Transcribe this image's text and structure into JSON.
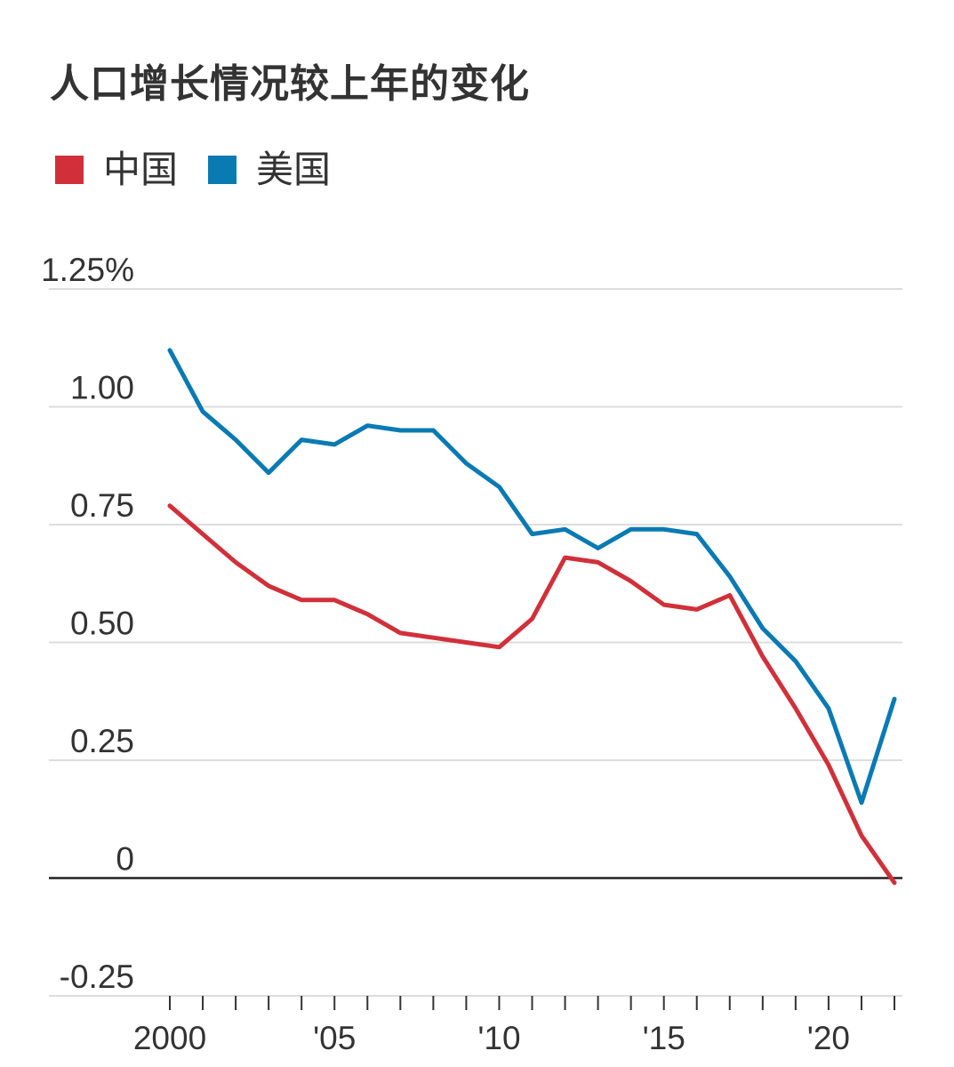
{
  "title": "人口增长情况较上年的变化",
  "legend": [
    {
      "label": "中国",
      "color": "#d1303a"
    },
    {
      "label": "美国",
      "color": "#0a7ab3"
    }
  ],
  "chart_data": {
    "type": "line",
    "title": "人口增长情况较上年的变化",
    "x": [
      2000,
      2001,
      2002,
      2003,
      2004,
      2005,
      2006,
      2007,
      2008,
      2009,
      2010,
      2011,
      2012,
      2013,
      2014,
      2015,
      2016,
      2017,
      2018,
      2019,
      2020,
      2021,
      2022
    ],
    "series": [
      {
        "name": "中国",
        "color": "#d1303a",
        "values": [
          0.79,
          0.73,
          0.67,
          0.62,
          0.59,
          0.59,
          0.56,
          0.52,
          0.51,
          0.5,
          0.49,
          0.55,
          0.68,
          0.67,
          0.63,
          0.58,
          0.57,
          0.6,
          0.47,
          0.36,
          0.24,
          0.09,
          -0.01
        ]
      },
      {
        "name": "美国",
        "color": "#0a7ab3",
        "values": [
          1.12,
          0.99,
          0.93,
          0.86,
          0.93,
          0.92,
          0.96,
          0.95,
          0.95,
          0.88,
          0.83,
          0.73,
          0.74,
          0.7,
          0.74,
          0.74,
          0.73,
          0.64,
          0.53,
          0.46,
          0.36,
          0.16,
          0.38
        ]
      }
    ],
    "ylim": [
      -0.25,
      1.25
    ],
    "y_ticks": [
      {
        "value": 1.25,
        "label": "1.25%"
      },
      {
        "value": 1.0,
        "label": "1.00"
      },
      {
        "value": 0.75,
        "label": "0.75"
      },
      {
        "value": 0.5,
        "label": "0.50"
      },
      {
        "value": 0.25,
        "label": "0.25"
      },
      {
        "value": 0,
        "label": "0"
      },
      {
        "value": -0.25,
        "label": "-0.25"
      }
    ],
    "x_ticks": [
      {
        "value": 2000,
        "label": "2000"
      },
      {
        "value": 2005,
        "label": "'05"
      },
      {
        "value": 2010,
        "label": "'10"
      },
      {
        "value": 2015,
        "label": "'15"
      },
      {
        "value": 2020,
        "label": "'20"
      }
    ],
    "grid": true,
    "legend_position": "top-left"
  }
}
